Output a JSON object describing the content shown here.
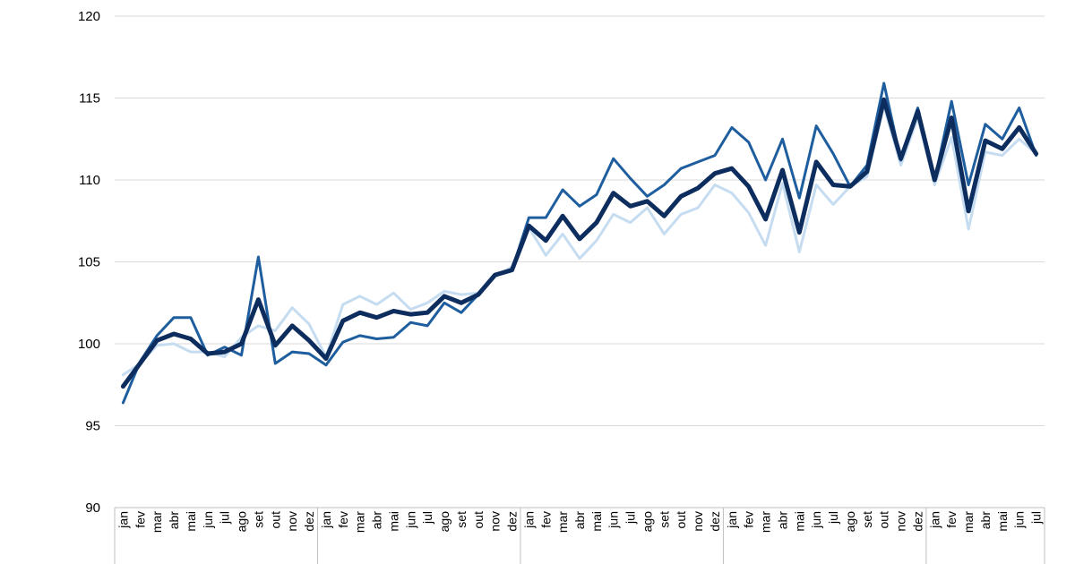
{
  "chart_data": {
    "type": "line",
    "title": "",
    "xlabel": "",
    "ylabel": "",
    "ylim": [
      90,
      120
    ],
    "yticks": [
      90,
      95,
      100,
      105,
      110,
      115,
      120
    ],
    "grid": "horizontal",
    "x": [
      "jan",
      "fev",
      "mar",
      "abr",
      "mai",
      "jun",
      "jul",
      "ago",
      "set",
      "out",
      "nov",
      "dez",
      "jan",
      "fev",
      "mar",
      "abr",
      "mai",
      "jun",
      "jul",
      "ago",
      "set",
      "out",
      "nov",
      "dez",
      "jan",
      "fev",
      "mar",
      "abr",
      "mai",
      "jun",
      "jul",
      "ago",
      "set",
      "out",
      "nov",
      "dez",
      "jan",
      "fev",
      "mar",
      "abr",
      "mai",
      "jun",
      "jul",
      "ago",
      "set",
      "out",
      "nov",
      "dez",
      "jan",
      "fev",
      "mar",
      "abr",
      "mai",
      "jun",
      "jul"
    ],
    "series": [
      {
        "color": "#c6dcf0",
        "width": 3,
        "values": [
          98.1,
          98.8,
          99.9,
          100.0,
          99.5,
          99.5,
          99.2,
          100.4,
          101.1,
          100.8,
          102.2,
          101.2,
          99.2,
          102.4,
          102.9,
          102.4,
          103.1,
          102.1,
          102.5,
          103.2,
          103.0,
          103.1,
          104.1,
          104.7,
          107.1,
          105.4,
          106.7,
          105.2,
          106.3,
          107.9,
          107.4,
          108.3,
          106.7,
          107.9,
          108.3,
          109.7,
          109.2,
          108.0,
          106.0,
          109.8,
          105.6,
          109.7,
          108.5,
          109.6,
          110.2,
          114.5,
          110.9,
          113.8,
          109.7,
          112.6,
          107.0,
          111.7,
          111.5,
          112.5,
          111.6
        ]
      },
      {
        "color": "#1f5e9e",
        "width": 3,
        "values": [
          96.4,
          98.9,
          100.5,
          101.6,
          101.6,
          99.3,
          99.8,
          99.3,
          105.3,
          98.8,
          99.5,
          99.4,
          98.7,
          100.1,
          100.5,
          100.3,
          100.4,
          101.3,
          101.1,
          102.5,
          101.9,
          103.0,
          104.2,
          104.5,
          107.7,
          107.7,
          109.4,
          108.4,
          109.1,
          111.3,
          110.1,
          109.0,
          109.7,
          110.7,
          111.1,
          111.5,
          113.2,
          112.3,
          110.0,
          112.5,
          108.9,
          113.3,
          111.6,
          109.6,
          110.9,
          115.9,
          111.2,
          114.4,
          110.0,
          114.8,
          109.7,
          113.4,
          112.5,
          114.4,
          111.5
        ]
      },
      {
        "color": "#0d2d5e",
        "width": 5,
        "values": [
          97.4,
          98.8,
          100.2,
          100.6,
          100.3,
          99.4,
          99.5,
          100.0,
          102.7,
          99.9,
          101.1,
          100.2,
          99.1,
          101.4,
          101.9,
          101.6,
          102.0,
          101.8,
          101.9,
          102.9,
          102.5,
          103.0,
          104.2,
          104.5,
          107.2,
          106.3,
          107.8,
          106.4,
          107.4,
          109.2,
          108.4,
          108.7,
          107.8,
          109.0,
          109.5,
          110.4,
          110.7,
          109.6,
          107.6,
          110.6,
          106.8,
          111.1,
          109.7,
          109.6,
          110.5,
          114.9,
          111.3,
          114.2,
          110.0,
          113.8,
          108.1,
          112.4,
          111.9,
          113.2,
          111.6
        ]
      }
    ]
  }
}
